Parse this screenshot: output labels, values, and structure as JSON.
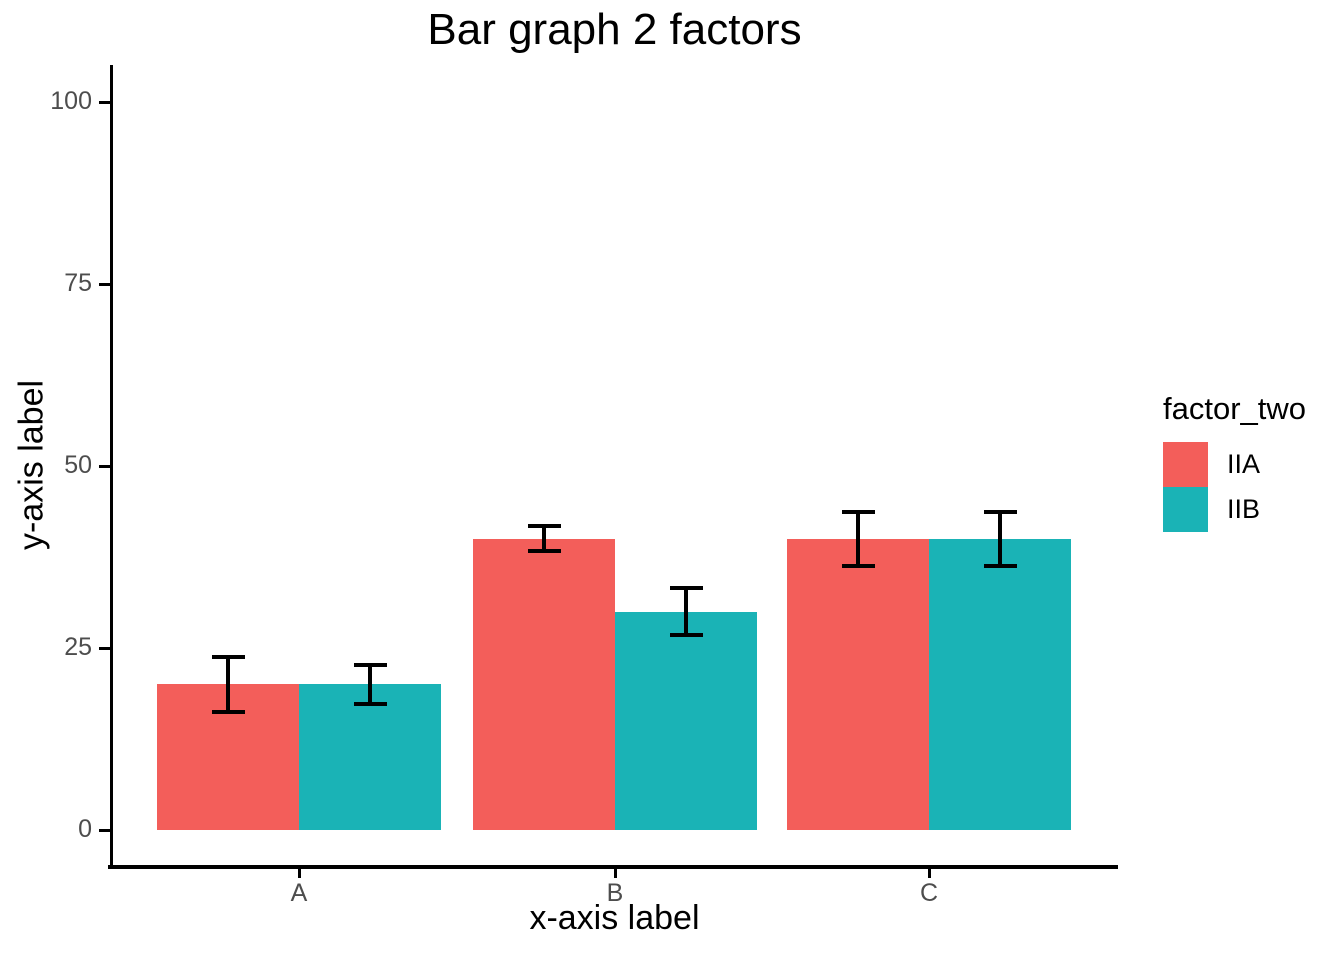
{
  "title": "Bar graph 2 factors",
  "axes": {
    "x_label": "x-axis label",
    "y_label": "y-axis label",
    "y_tick_labels": [
      "0",
      "25",
      "50",
      "75",
      "100"
    ],
    "x_categories": [
      "A",
      "B",
      "C"
    ]
  },
  "legend": {
    "title": "factor_two",
    "items": [
      {
        "label": "IIA",
        "color": "#F35E5A"
      },
      {
        "label": "IIB",
        "color": "#1AB3B6"
      }
    ]
  },
  "colors": {
    "series_iia": "#F35E5A",
    "series_iib": "#1AB3B6",
    "axis_line": "#000000",
    "error_bar": "#000000",
    "tick_label": "#4D4D4D",
    "background": "#FFFFFF"
  },
  "chart_data": {
    "type": "bar",
    "grouping": "dodged",
    "title": "Bar graph 2 factors",
    "xlabel": "x-axis label",
    "ylabel": "y-axis label",
    "categories": [
      "A",
      "B",
      "C"
    ],
    "series": [
      {
        "name": "IIA",
        "color": "#F35E5A",
        "values": [
          20,
          40,
          40
        ],
        "error_low": [
          16,
          38,
          36
        ],
        "error_high": [
          24,
          42,
          44
        ]
      },
      {
        "name": "IIB",
        "color": "#1AB3B6",
        "values": [
          20,
          30,
          40
        ],
        "error_low": [
          17,
          26.5,
          36
        ],
        "error_high": [
          23,
          33.5,
          44
        ]
      }
    ],
    "y_ticks": [
      0,
      25,
      50,
      75,
      100
    ],
    "ylim": [
      0,
      100
    ],
    "grid": false,
    "error_bars": true,
    "legend_title": "factor_two",
    "legend_position": "right"
  }
}
